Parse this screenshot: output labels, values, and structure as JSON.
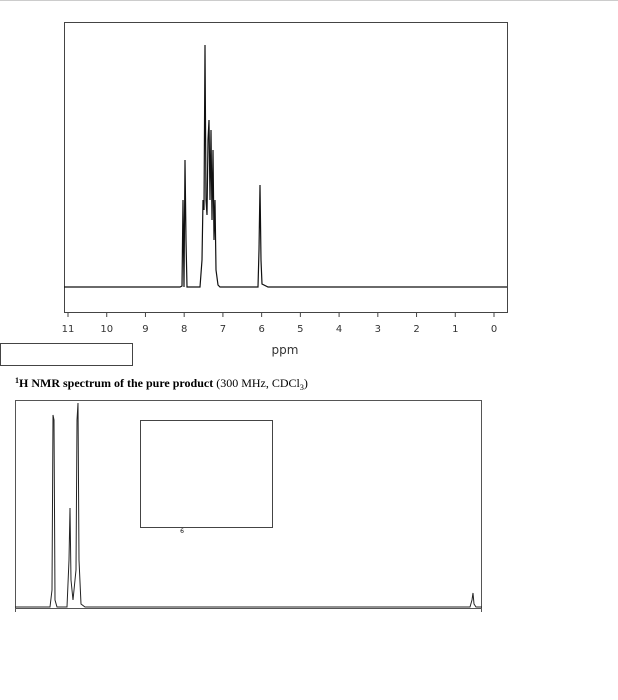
{
  "spectrum": {
    "xticks": [
      "11",
      "10",
      "9",
      "8",
      "7",
      "6",
      "5",
      "4",
      "3",
      "2",
      "1",
      "0"
    ],
    "x_label": "ppm"
  },
  "caption": {
    "superscript": "1",
    "bold": "H NMR spectrum of the pure product",
    "normal": " (300 MHz, CDCl",
    "subscript": "3",
    "close": ")"
  },
  "inset": {
    "label": "6"
  }
}
